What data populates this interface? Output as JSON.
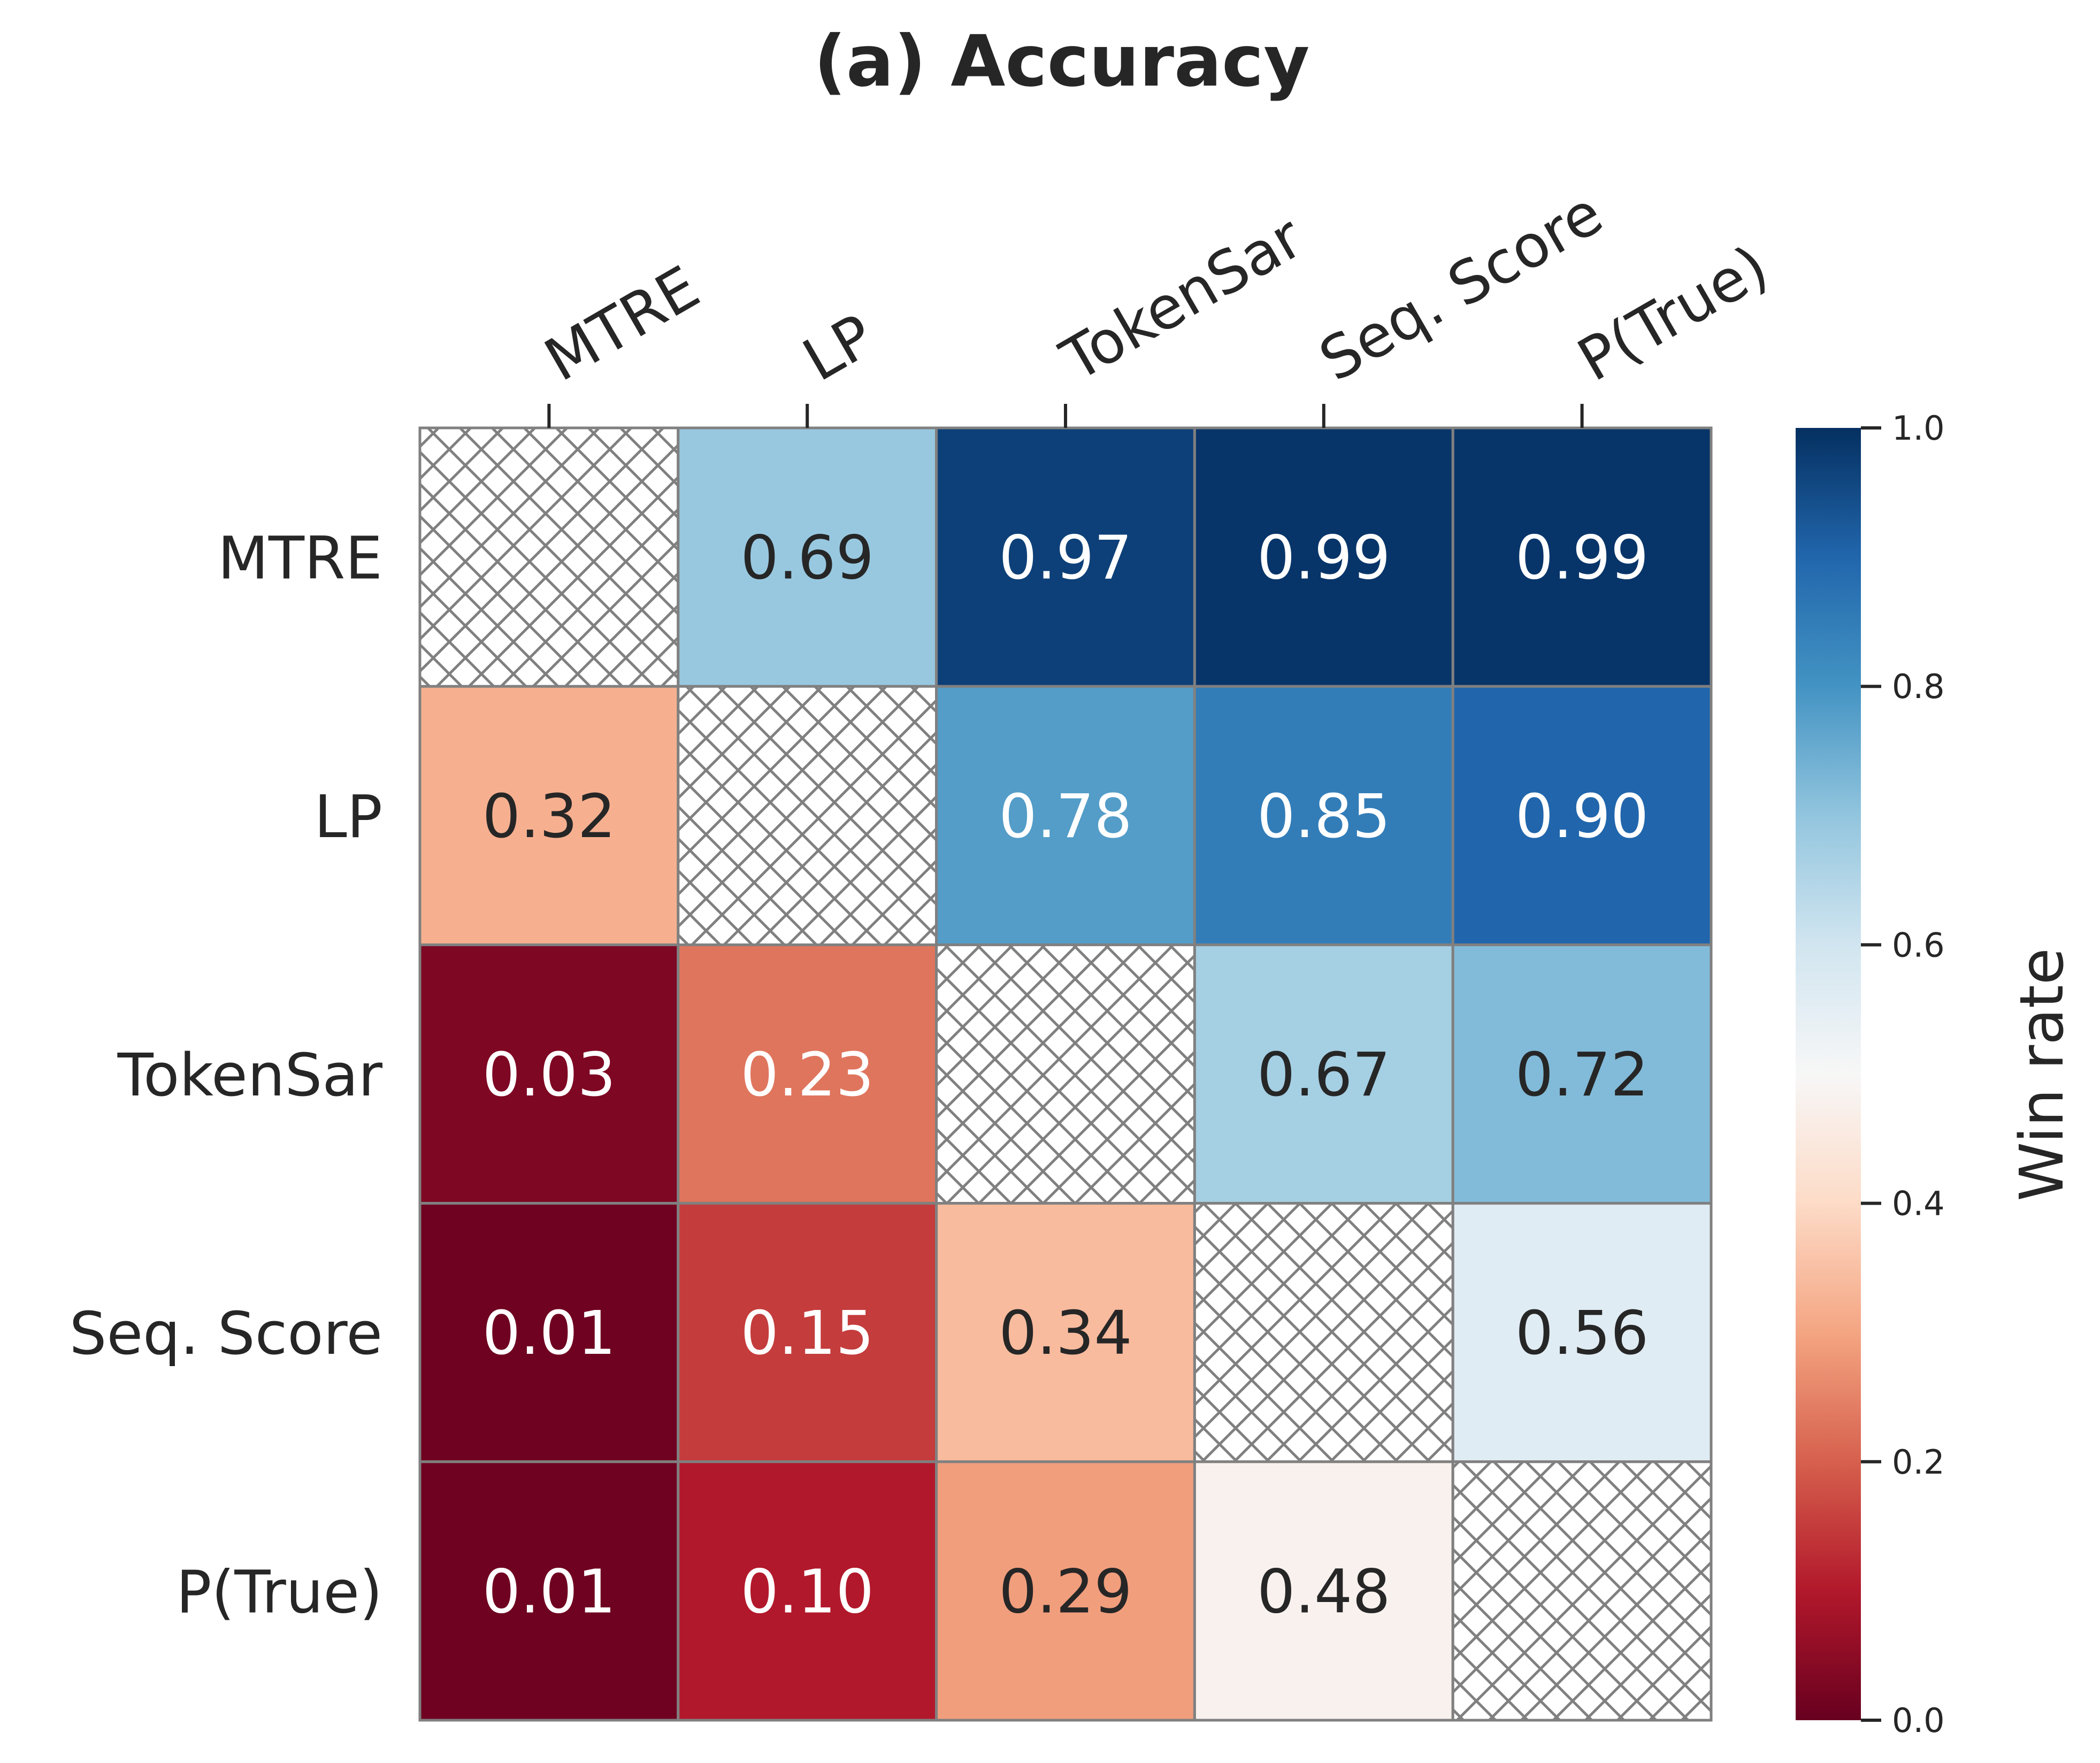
{
  "chart_data": {
    "type": "heatmap",
    "title": "(a) Accuracy",
    "rows": [
      "MTRE",
      "LP",
      "TokenSar",
      "Seq. Score",
      "P(True)"
    ],
    "columns": [
      "MTRE",
      "LP",
      "TokenSar",
      "Seq. Score",
      "P(True)"
    ],
    "values": [
      [
        null,
        0.69,
        0.97,
        0.99,
        0.99
      ],
      [
        0.32,
        null,
        0.78,
        0.85,
        0.9
      ],
      [
        0.03,
        0.23,
        null,
        0.67,
        0.72
      ],
      [
        0.01,
        0.15,
        0.34,
        null,
        0.56
      ],
      [
        0.01,
        0.1,
        0.29,
        0.48,
        null
      ]
    ],
    "cell_labels": [
      [
        "",
        "0.69",
        "0.97",
        "0.99",
        "0.99"
      ],
      [
        "0.32",
        "",
        "0.78",
        "0.85",
        "0.90"
      ],
      [
        "0.03",
        "0.23",
        "",
        "0.67",
        "0.72"
      ],
      [
        "0.01",
        "0.15",
        "0.34",
        "",
        "0.56"
      ],
      [
        "0.01",
        "0.10",
        "0.29",
        "0.48",
        ""
      ]
    ],
    "diagonal": "hatched",
    "colormap": "RdBu",
    "colorbar": {
      "label": "Win rate",
      "range": [
        0,
        1
      ],
      "ticks": [
        0.0,
        0.2,
        0.4,
        0.6,
        0.8,
        1.0
      ],
      "tick_labels": [
        "0.0",
        "0.2",
        "0.4",
        "0.6",
        "0.8",
        "1.0"
      ]
    },
    "colors": {
      "cell_border": "#808080",
      "hatch": "#808080",
      "text_dark": "#262626",
      "text_light": "#ffffff"
    }
  }
}
